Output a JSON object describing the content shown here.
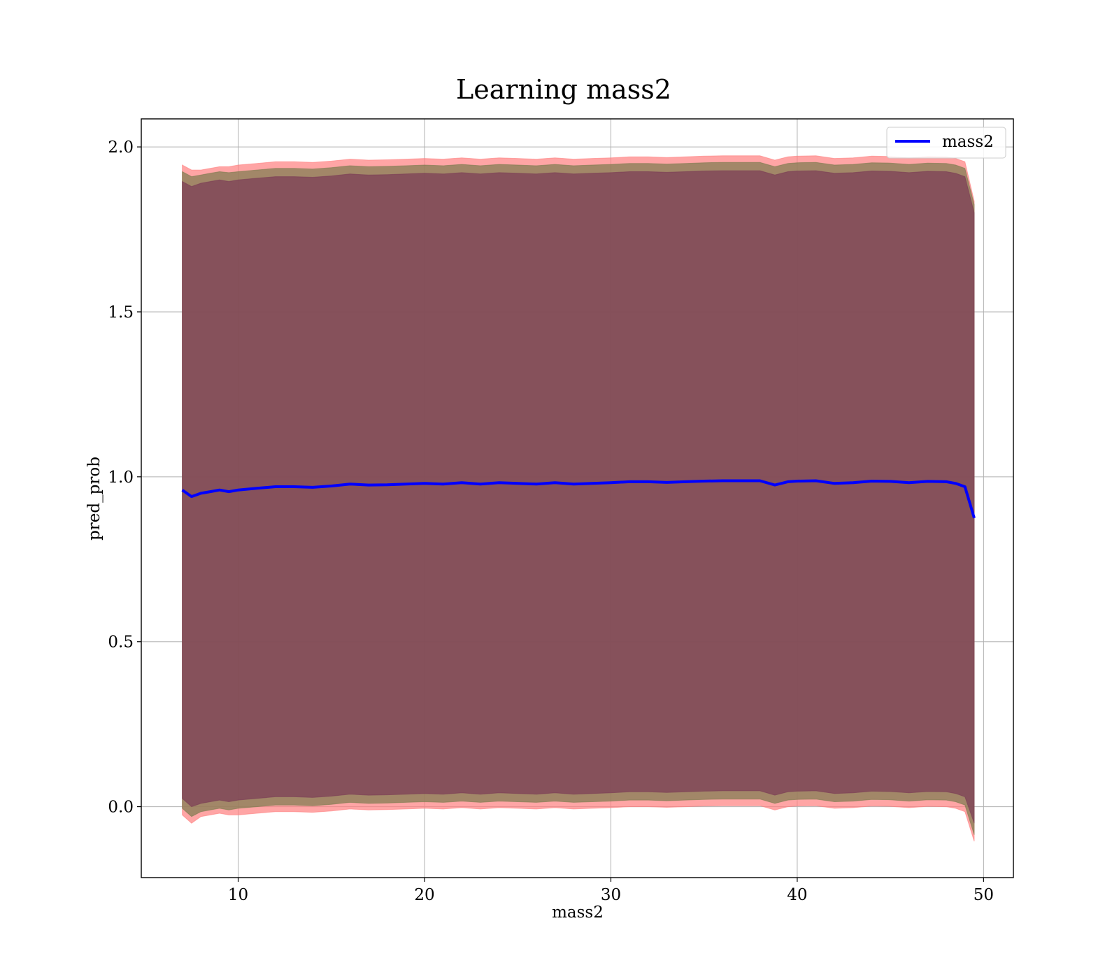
{
  "chart_data": {
    "type": "line",
    "title": "Learning mass2",
    "xlabel": "mass2",
    "ylabel": "pred_prob",
    "xlim": [
      4.8,
      51.6
    ],
    "ylim": [
      -0.215,
      2.085
    ],
    "xticks": [
      10,
      20,
      30,
      40,
      50
    ],
    "yticks": [
      0.0,
      0.5,
      1.0,
      1.5,
      2.0
    ],
    "xtick_labels": [
      "10",
      "20",
      "30",
      "40",
      "50"
    ],
    "ytick_labels": [
      "0.0",
      "0.5",
      "1.0",
      "1.5",
      "2.0"
    ],
    "grid": true,
    "legend": {
      "position": "upper right",
      "entries": [
        "mass2"
      ]
    },
    "series": [
      {
        "name": "mass2",
        "color": "#0000ff",
        "x": [
          7.0,
          7.5,
          8.0,
          8.5,
          9.0,
          9.5,
          10.0,
          11.0,
          12.0,
          13.0,
          14.0,
          15.0,
          16.0,
          17.0,
          18.0,
          19.0,
          20.0,
          21.0,
          22.0,
          23.0,
          24.0,
          25.0,
          26.0,
          27.0,
          28.0,
          29.0,
          30.0,
          31.0,
          32.0,
          33.0,
          34.0,
          35.0,
          36.0,
          37.0,
          38.0,
          38.8,
          39.5,
          40.0,
          41.0,
          42.0,
          43.0,
          44.0,
          45.0,
          46.0,
          47.0,
          48.0,
          48.5,
          49.0,
          49.5
        ],
        "y": [
          0.96,
          0.94,
          0.95,
          0.955,
          0.96,
          0.955,
          0.96,
          0.965,
          0.97,
          0.97,
          0.968,
          0.972,
          0.978,
          0.975,
          0.976,
          0.978,
          0.98,
          0.978,
          0.982,
          0.978,
          0.982,
          0.98,
          0.978,
          0.982,
          0.978,
          0.98,
          0.982,
          0.985,
          0.985,
          0.983,
          0.985,
          0.987,
          0.988,
          0.988,
          0.988,
          0.975,
          0.985,
          0.987,
          0.988,
          0.98,
          0.982,
          0.987,
          0.986,
          0.982,
          0.986,
          0.985,
          0.98,
          0.97,
          0.875
        ]
      }
    ],
    "bands": [
      {
        "color": "#ff7f7f",
        "x": [
          7.0,
          7.5,
          8.0,
          8.5,
          9.0,
          9.5,
          10.0,
          11.0,
          12.0,
          13.0,
          14.0,
          15.0,
          16.0,
          17.0,
          18.0,
          19.0,
          20.0,
          21.0,
          22.0,
          23.0,
          24.0,
          25.0,
          26.0,
          27.0,
          28.0,
          29.0,
          30.0,
          31.0,
          32.0,
          33.0,
          34.0,
          35.0,
          36.0,
          37.0,
          38.0,
          38.8,
          39.5,
          40.0,
          41.0,
          42.0,
          43.0,
          44.0,
          45.0,
          46.0,
          47.0,
          48.0,
          48.5,
          49.0,
          49.5
        ],
        "upper": [
          1.945,
          1.93,
          1.93,
          1.935,
          1.94,
          1.94,
          1.945,
          1.95,
          1.955,
          1.955,
          1.953,
          1.957,
          1.963,
          1.96,
          1.961,
          1.963,
          1.965,
          1.963,
          1.967,
          1.963,
          1.967,
          1.965,
          1.963,
          1.967,
          1.963,
          1.965,
          1.967,
          1.97,
          1.97,
          1.968,
          1.97,
          1.972,
          1.973,
          1.973,
          1.973,
          1.96,
          1.97,
          1.972,
          1.973,
          1.965,
          1.967,
          1.972,
          1.971,
          1.967,
          1.971,
          1.97,
          1.965,
          1.955,
          1.835
        ],
        "lower": [
          -0.025,
          -0.05,
          -0.03,
          -0.025,
          -0.02,
          -0.025,
          -0.025,
          -0.02,
          -0.015,
          -0.015,
          -0.017,
          -0.013,
          -0.007,
          -0.01,
          -0.009,
          -0.007,
          -0.005,
          -0.007,
          -0.003,
          -0.007,
          -0.003,
          -0.005,
          -0.007,
          -0.003,
          -0.007,
          -0.005,
          -0.003,
          0.0,
          0.0,
          -0.002,
          0.0,
          0.002,
          0.003,
          0.003,
          0.003,
          -0.01,
          0.0,
          0.002,
          0.003,
          -0.005,
          -0.003,
          0.002,
          0.001,
          -0.003,
          0.001,
          0.0,
          -0.005,
          -0.015,
          -0.105
        ]
      },
      {
        "color": "#7b7b4f",
        "x": [
          7.0,
          7.5,
          8.0,
          8.5,
          9.0,
          9.5,
          10.0,
          11.0,
          12.0,
          13.0,
          14.0,
          15.0,
          16.0,
          17.0,
          18.0,
          19.0,
          20.0,
          21.0,
          22.0,
          23.0,
          24.0,
          25.0,
          26.0,
          27.0,
          28.0,
          29.0,
          30.0,
          31.0,
          32.0,
          33.0,
          34.0,
          35.0,
          36.0,
          37.0,
          38.0,
          38.8,
          39.5,
          40.0,
          41.0,
          42.0,
          43.0,
          44.0,
          45.0,
          46.0,
          47.0,
          48.0,
          48.5,
          49.0,
          49.5
        ],
        "upper": [
          1.925,
          1.91,
          1.915,
          1.92,
          1.925,
          1.922,
          1.925,
          1.93,
          1.935,
          1.935,
          1.933,
          1.937,
          1.943,
          1.94,
          1.941,
          1.943,
          1.945,
          1.943,
          1.947,
          1.943,
          1.947,
          1.945,
          1.943,
          1.947,
          1.943,
          1.945,
          1.947,
          1.95,
          1.95,
          1.948,
          1.95,
          1.952,
          1.953,
          1.953,
          1.953,
          1.94,
          1.95,
          1.952,
          1.953,
          1.945,
          1.947,
          1.952,
          1.951,
          1.947,
          1.951,
          1.95,
          1.945,
          1.935,
          1.825
        ],
        "lower": [
          -0.005,
          -0.03,
          -0.015,
          -0.01,
          -0.005,
          -0.01,
          -0.005,
          0.0,
          0.005,
          0.005,
          0.003,
          0.007,
          0.013,
          0.01,
          0.011,
          0.013,
          0.015,
          0.013,
          0.017,
          0.013,
          0.017,
          0.015,
          0.013,
          0.017,
          0.013,
          0.015,
          0.017,
          0.02,
          0.02,
          0.018,
          0.02,
          0.022,
          0.023,
          0.023,
          0.023,
          0.01,
          0.02,
          0.022,
          0.023,
          0.015,
          0.017,
          0.022,
          0.021,
          0.017,
          0.021,
          0.02,
          0.015,
          0.005,
          -0.085
        ]
      },
      {
        "color": "#7a3b55",
        "x": [
          7.0,
          7.5,
          8.0,
          8.5,
          9.0,
          9.5,
          10.0,
          11.0,
          12.0,
          13.0,
          14.0,
          15.0,
          16.0,
          17.0,
          18.0,
          19.0,
          20.0,
          21.0,
          22.0,
          23.0,
          24.0,
          25.0,
          26.0,
          27.0,
          28.0,
          29.0,
          30.0,
          31.0,
          32.0,
          33.0,
          34.0,
          35.0,
          36.0,
          37.0,
          38.0,
          38.8,
          39.5,
          40.0,
          41.0,
          42.0,
          43.0,
          44.0,
          45.0,
          46.0,
          47.0,
          48.0,
          48.5,
          49.0,
          49.5
        ],
        "upper": [
          1.895,
          1.88,
          1.89,
          1.895,
          1.9,
          1.895,
          1.9,
          1.905,
          1.91,
          1.91,
          1.908,
          1.912,
          1.918,
          1.915,
          1.916,
          1.918,
          1.92,
          1.918,
          1.922,
          1.918,
          1.922,
          1.92,
          1.918,
          1.922,
          1.918,
          1.92,
          1.922,
          1.925,
          1.925,
          1.923,
          1.925,
          1.927,
          1.928,
          1.928,
          1.928,
          1.915,
          1.925,
          1.927,
          1.928,
          1.92,
          1.922,
          1.927,
          1.926,
          1.922,
          1.926,
          1.925,
          1.92,
          1.91,
          1.8
        ],
        "lower": [
          0.025,
          0.0,
          0.01,
          0.015,
          0.02,
          0.015,
          0.02,
          0.025,
          0.03,
          0.03,
          0.028,
          0.032,
          0.038,
          0.035,
          0.036,
          0.038,
          0.04,
          0.038,
          0.042,
          0.038,
          0.042,
          0.04,
          0.038,
          0.042,
          0.038,
          0.04,
          0.042,
          0.045,
          0.045,
          0.043,
          0.045,
          0.047,
          0.048,
          0.048,
          0.048,
          0.035,
          0.045,
          0.047,
          0.048,
          0.04,
          0.042,
          0.047,
          0.046,
          0.042,
          0.046,
          0.045,
          0.04,
          0.03,
          -0.05
        ]
      }
    ]
  }
}
